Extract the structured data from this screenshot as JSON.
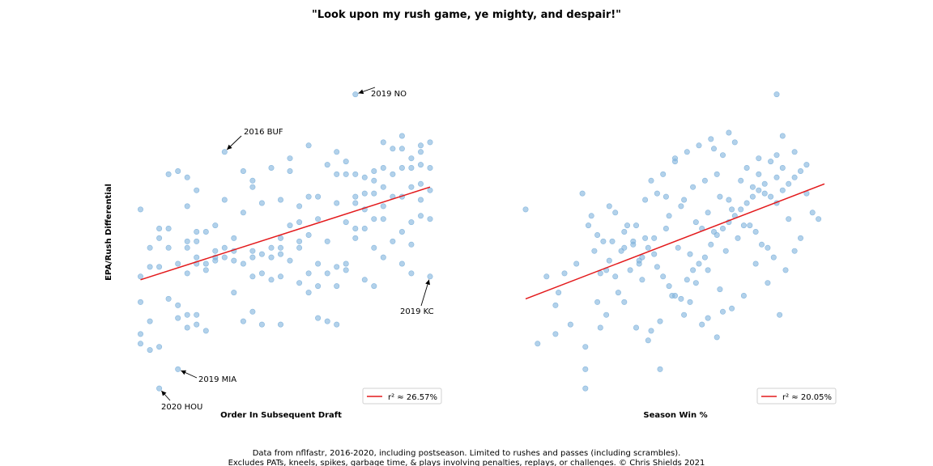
{
  "title": "\"Look upon my rush game, ye mighty, and despair!\"",
  "caption": [
    "Data from nflfastr, 2016-2020, including postseason. Limited to rushes and passes (including scrambles).",
    "Excludes PATs, kneels, spikes, garbage time, & plays involving penalties, replays, or challenges. © Chris Shields 2021"
  ],
  "colors": {
    "points": "#7fb2dc",
    "fit_line": "#e31a1c"
  },
  "chart_data": [
    {
      "type": "scatter",
      "xlabel": "Order In Subsequent Draft",
      "ylabel": "EPA/Rush Differential",
      "xlim": [
        0,
        32
      ],
      "ylim": [
        0,
        100
      ],
      "grid": false,
      "legend": {
        "position": "bottom-right",
        "label": "r² ≈ 26.57%"
      },
      "fit_line": {
        "x": [
          1,
          32
        ],
        "y": [
          35,
          64
        ]
      },
      "annotations": [
        {
          "text": "2019 NO",
          "point": [
            24,
            93
          ]
        },
        {
          "text": "2016 BUF",
          "point": [
            10,
            75
          ]
        },
        {
          "text": "2019 KC",
          "point": [
            32,
            36
          ]
        },
        {
          "text": "2019 MIA",
          "point": [
            5,
            7
          ]
        },
        {
          "text": "2020 HOU",
          "point": [
            3,
            1
          ]
        }
      ],
      "points": [
        [
          24,
          93
        ],
        [
          10,
          75
        ],
        [
          32,
          36
        ],
        [
          5,
          7
        ],
        [
          3,
          1
        ],
        [
          1,
          57
        ],
        [
          1,
          36
        ],
        [
          1,
          28
        ],
        [
          1,
          18
        ],
        [
          1,
          15
        ],
        [
          2,
          45
        ],
        [
          2,
          39
        ],
        [
          2,
          22
        ],
        [
          2,
          13
        ],
        [
          3,
          51
        ],
        [
          3,
          48
        ],
        [
          3,
          39
        ],
        [
          3,
          14
        ],
        [
          4,
          68
        ],
        [
          4,
          51
        ],
        [
          4,
          45
        ],
        [
          4,
          29
        ],
        [
          5,
          69
        ],
        [
          5,
          40
        ],
        [
          5,
          27
        ],
        [
          5,
          23
        ],
        [
          6,
          67
        ],
        [
          6,
          58
        ],
        [
          6,
          47
        ],
        [
          6,
          45
        ],
        [
          6,
          37
        ],
        [
          6,
          24
        ],
        [
          6,
          20
        ],
        [
          7,
          63
        ],
        [
          7,
          50
        ],
        [
          7,
          47
        ],
        [
          7,
          42
        ],
        [
          7,
          40
        ],
        [
          7,
          24
        ],
        [
          7,
          21
        ],
        [
          8,
          50
        ],
        [
          8,
          40
        ],
        [
          8,
          38
        ],
        [
          8,
          19
        ],
        [
          9,
          52
        ],
        [
          9,
          42
        ],
        [
          9,
          41
        ],
        [
          9,
          44
        ],
        [
          10,
          60
        ],
        [
          10,
          45
        ],
        [
          10,
          42
        ],
        [
          11,
          48
        ],
        [
          11,
          44
        ],
        [
          11,
          41
        ],
        [
          11,
          31
        ],
        [
          12,
          69
        ],
        [
          12,
          56
        ],
        [
          12,
          40
        ],
        [
          12,
          22
        ],
        [
          13,
          66
        ],
        [
          13,
          64
        ],
        [
          13,
          44
        ],
        [
          13,
          42
        ],
        [
          13,
          36
        ],
        [
          13,
          25
        ],
        [
          14,
          59
        ],
        [
          14,
          43
        ],
        [
          14,
          37
        ],
        [
          14,
          21
        ],
        [
          15,
          70
        ],
        [
          15,
          45
        ],
        [
          15,
          42
        ],
        [
          15,
          35
        ],
        [
          16,
          60
        ],
        [
          16,
          48
        ],
        [
          16,
          45
        ],
        [
          16,
          43
        ],
        [
          16,
          36
        ],
        [
          16,
          21
        ],
        [
          17,
          73
        ],
        [
          17,
          69
        ],
        [
          17,
          52
        ],
        [
          17,
          41
        ],
        [
          18,
          58
        ],
        [
          18,
          53
        ],
        [
          18,
          47
        ],
        [
          18,
          45
        ],
        [
          18,
          34
        ],
        [
          19,
          77
        ],
        [
          19,
          61
        ],
        [
          19,
          49
        ],
        [
          19,
          37
        ],
        [
          19,
          31
        ],
        [
          20,
          61
        ],
        [
          20,
          54
        ],
        [
          20,
          40
        ],
        [
          20,
          33
        ],
        [
          20,
          23
        ],
        [
          21,
          71
        ],
        [
          21,
          47
        ],
        [
          21,
          37
        ],
        [
          21,
          22
        ],
        [
          22,
          75
        ],
        [
          22,
          68
        ],
        [
          22,
          59
        ],
        [
          22,
          39
        ],
        [
          22,
          33
        ],
        [
          22,
          21
        ],
        [
          23,
          72
        ],
        [
          23,
          68
        ],
        [
          23,
          53
        ],
        [
          23,
          40
        ],
        [
          23,
          38
        ],
        [
          24,
          68
        ],
        [
          24,
          61
        ],
        [
          24,
          59
        ],
        [
          24,
          51
        ],
        [
          24,
          48
        ],
        [
          25,
          67
        ],
        [
          25,
          62
        ],
        [
          25,
          57
        ],
        [
          25,
          51
        ],
        [
          25,
          35
        ],
        [
          26,
          69
        ],
        [
          26,
          66
        ],
        [
          26,
          62
        ],
        [
          26,
          54
        ],
        [
          26,
          45
        ],
        [
          26,
          33
        ],
        [
          27,
          78
        ],
        [
          27,
          70
        ],
        [
          27,
          64
        ],
        [
          27,
          58
        ],
        [
          27,
          54
        ],
        [
          27,
          42
        ],
        [
          28,
          76
        ],
        [
          28,
          68
        ],
        [
          28,
          61
        ],
        [
          28,
          47
        ],
        [
          29,
          80
        ],
        [
          29,
          76
        ],
        [
          29,
          70
        ],
        [
          29,
          61
        ],
        [
          29,
          50
        ],
        [
          29,
          40
        ],
        [
          30,
          73
        ],
        [
          30,
          70
        ],
        [
          30,
          64
        ],
        [
          30,
          53
        ],
        [
          30,
          46
        ],
        [
          30,
          37
        ],
        [
          31,
          77
        ],
        [
          31,
          75
        ],
        [
          31,
          71
        ],
        [
          31,
          65
        ],
        [
          31,
          60
        ],
        [
          31,
          55
        ],
        [
          32,
          78
        ],
        [
          32,
          70
        ],
        [
          32,
          63
        ],
        [
          32,
          54
        ]
      ]
    },
    {
      "type": "scatter",
      "xlabel": "Season Win %",
      "ylabel": "",
      "xlim": [
        0,
        1
      ],
      "ylim": [
        0,
        100
      ],
      "grid": false,
      "legend": {
        "position": "bottom-right",
        "label": "r² ≈ 20.05%"
      },
      "fit_line": {
        "x": [
          0,
          1
        ],
        "y": [
          29,
          65
        ]
      },
      "points": [
        [
          0.84,
          93
        ],
        [
          0,
          57
        ],
        [
          0.07,
          36
        ],
        [
          0.15,
          21
        ],
        [
          0.2,
          1
        ],
        [
          0.2,
          7
        ],
        [
          0.11,
          31
        ],
        [
          0.04,
          15
        ],
        [
          0.1,
          18
        ],
        [
          0.3,
          36
        ],
        [
          0.17,
          40
        ],
        [
          0.25,
          37
        ],
        [
          0.28,
          41
        ],
        [
          0.32,
          44
        ],
        [
          0.24,
          49
        ],
        [
          0.21,
          52
        ],
        [
          0.19,
          62
        ],
        [
          0.28,
          58
        ],
        [
          0.33,
          50
        ],
        [
          0.36,
          47
        ],
        [
          0.38,
          41
        ],
        [
          0.4,
          48
        ],
        [
          0.41,
          45
        ],
        [
          0.43,
          43
        ],
        [
          0.44,
          39
        ],
        [
          0.46,
          36
        ],
        [
          0.48,
          33
        ],
        [
          0.5,
          30
        ],
        [
          0.52,
          29
        ],
        [
          0.54,
          35
        ],
        [
          0.56,
          38
        ],
        [
          0.58,
          40
        ],
        [
          0.6,
          42
        ],
        [
          0.62,
          46
        ],
        [
          0.64,
          49
        ],
        [
          0.66,
          51
        ],
        [
          0.68,
          53
        ],
        [
          0.7,
          55
        ],
        [
          0.72,
          57
        ],
        [
          0.74,
          59
        ],
        [
          0.76,
          61
        ],
        [
          0.78,
          63
        ],
        [
          0.8,
          65
        ],
        [
          0.82,
          61
        ],
        [
          0.84,
          59
        ],
        [
          0.86,
          63
        ],
        [
          0.88,
          65
        ],
        [
          0.9,
          67
        ],
        [
          0.92,
          69
        ],
        [
          0.94,
          71
        ],
        [
          0.96,
          56
        ],
        [
          0.98,
          54
        ],
        [
          0.4,
          60
        ],
        [
          0.42,
          66
        ],
        [
          0.46,
          68
        ],
        [
          0.5,
          72
        ],
        [
          0.54,
          75
        ],
        [
          0.58,
          77
        ],
        [
          0.62,
          79
        ],
        [
          0.66,
          74
        ],
        [
          0.7,
          78
        ],
        [
          0.74,
          70
        ],
        [
          0.78,
          68
        ],
        [
          0.82,
          72
        ],
        [
          0.86,
          70
        ],
        [
          0.3,
          56
        ],
        [
          0.34,
          52
        ],
        [
          0.36,
          46
        ],
        [
          0.38,
          40
        ],
        [
          0.44,
          62
        ],
        [
          0.48,
          55
        ],
        [
          0.52,
          58
        ],
        [
          0.56,
          64
        ],
        [
          0.6,
          66
        ],
        [
          0.64,
          68
        ],
        [
          0.68,
          60
        ],
        [
          0.72,
          66
        ],
        [
          0.76,
          64
        ],
        [
          0.8,
          62
        ],
        [
          0.84,
          67
        ],
        [
          0.88,
          54
        ],
        [
          0.9,
          44
        ],
        [
          0.92,
          48
        ],
        [
          0.94,
          62
        ],
        [
          0.33,
          28
        ],
        [
          0.37,
          20
        ],
        [
          0.41,
          16
        ],
        [
          0.45,
          22
        ],
        [
          0.49,
          30
        ],
        [
          0.53,
          24
        ],
        [
          0.57,
          34
        ],
        [
          0.61,
          38
        ],
        [
          0.65,
          32
        ],
        [
          0.69,
          26
        ],
        [
          0.73,
          30
        ],
        [
          0.77,
          40
        ],
        [
          0.81,
          34
        ],
        [
          0.85,
          24
        ],
        [
          0.22,
          55
        ],
        [
          0.26,
          47
        ],
        [
          0.24,
          28
        ],
        [
          0.27,
          24
        ],
        [
          0.31,
          31
        ],
        [
          0.35,
          38
        ],
        [
          0.39,
          42
        ],
        [
          0.43,
          48
        ],
        [
          0.47,
          51
        ],
        [
          0.51,
          45
        ],
        [
          0.55,
          43
        ],
        [
          0.59,
          51
        ],
        [
          0.63,
          50
        ],
        [
          0.67,
          44
        ],
        [
          0.71,
          48
        ],
        [
          0.75,
          52
        ],
        [
          0.79,
          46
        ],
        [
          0.83,
          42
        ],
        [
          0.87,
          38
        ],
        [
          0.29,
          47
        ],
        [
          0.39,
          35
        ],
        [
          0.42,
          19
        ],
        [
          0.45,
          7
        ],
        [
          0.55,
          28
        ],
        [
          0.59,
          21
        ],
        [
          0.61,
          23
        ],
        [
          0.64,
          17
        ],
        [
          0.66,
          25
        ],
        [
          0.2,
          14
        ],
        [
          0.13,
          37
        ],
        [
          0.1,
          27
        ],
        [
          0.25,
          20
        ],
        [
          0.86,
          80
        ],
        [
          0.9,
          75
        ],
        [
          0.84,
          74
        ],
        [
          0.78,
          73
        ],
        [
          0.68,
          81
        ],
        [
          0.63,
          76
        ],
        [
          0.5,
          73
        ],
        [
          0.47,
          61
        ],
        [
          0.53,
          60
        ],
        [
          0.57,
          53
        ],
        [
          0.61,
          56
        ],
        [
          0.65,
          61
        ],
        [
          0.69,
          57
        ],
        [
          0.73,
          52
        ],
        [
          0.77,
          50
        ],
        [
          0.81,
          45
        ],
        [
          0.27,
          38
        ],
        [
          0.23,
          44
        ],
        [
          0.33,
          45
        ],
        [
          0.37,
          52
        ]
      ]
    }
  ]
}
